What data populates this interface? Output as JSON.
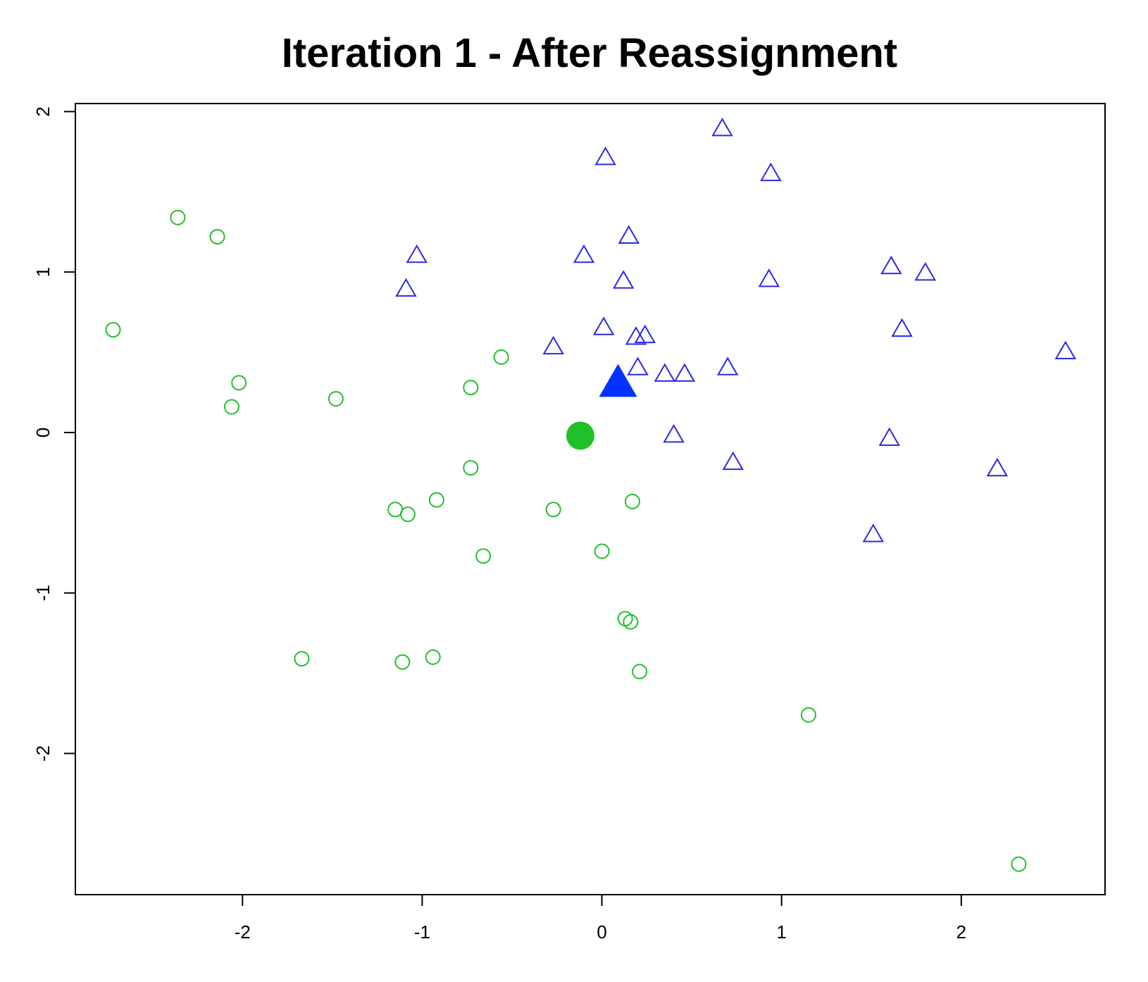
{
  "chart_data": {
    "type": "scatter",
    "title": "Iteration 1 - After Reassignment",
    "xlabel": "",
    "ylabel": "",
    "xlim": [
      -2.93,
      2.8
    ],
    "ylim": [
      -2.88,
      2.05
    ],
    "xticks": [
      -2,
      -1,
      0,
      1,
      2
    ],
    "yticks": [
      -2,
      -1,
      0,
      1,
      2
    ],
    "xtick_labels": [
      "-2",
      "-1",
      "0",
      "1",
      "2"
    ],
    "ytick_labels": [
      "-2",
      "-1",
      "0",
      "1",
      "2"
    ],
    "grid": false,
    "legend": "none",
    "series": [
      {
        "marker": "open-circle",
        "color": "#22c02b",
        "points": [
          [
            -2.36,
            1.34
          ],
          [
            -2.14,
            1.22
          ],
          [
            -2.72,
            0.64
          ],
          [
            -2.02,
            0.31
          ],
          [
            -2.06,
            0.16
          ],
          [
            -1.48,
            0.21
          ],
          [
            -0.56,
            0.47
          ],
          [
            -0.73,
            0.28
          ],
          [
            -0.73,
            -0.22
          ],
          [
            -0.92,
            -0.42
          ],
          [
            -1.15,
            -0.48
          ],
          [
            -1.08,
            -0.51
          ],
          [
            -0.27,
            -0.48
          ],
          [
            0.17,
            -0.43
          ],
          [
            -0.66,
            -0.77
          ],
          [
            0.0,
            -0.74
          ],
          [
            0.13,
            -1.16
          ],
          [
            0.16,
            -1.18
          ],
          [
            0.21,
            -1.49
          ],
          [
            -1.67,
            -1.41
          ],
          [
            -1.11,
            -1.43
          ],
          [
            -0.94,
            -1.4
          ],
          [
            1.15,
            -1.76
          ],
          [
            2.32,
            -2.69
          ]
        ]
      },
      {
        "marker": "open-triangle",
        "color": "#2a2ae0",
        "points": [
          [
            0.67,
            1.89
          ],
          [
            0.02,
            1.71
          ],
          [
            0.94,
            1.61
          ],
          [
            0.15,
            1.22
          ],
          [
            -1.03,
            1.1
          ],
          [
            -0.1,
            1.1
          ],
          [
            -1.09,
            0.89
          ],
          [
            0.12,
            0.94
          ],
          [
            1.61,
            1.03
          ],
          [
            1.8,
            0.99
          ],
          [
            0.93,
            0.95
          ],
          [
            0.01,
            0.65
          ],
          [
            0.19,
            0.59
          ],
          [
            0.24,
            0.6
          ],
          [
            1.67,
            0.64
          ],
          [
            -0.27,
            0.53
          ],
          [
            2.58,
            0.5
          ],
          [
            0.2,
            0.4
          ],
          [
            0.35,
            0.36
          ],
          [
            0.46,
            0.36
          ],
          [
            0.7,
            0.4
          ],
          [
            0.4,
            -0.02
          ],
          [
            0.73,
            -0.19
          ],
          [
            1.6,
            -0.04
          ],
          [
            2.2,
            -0.23
          ],
          [
            1.51,
            -0.64
          ]
        ]
      }
    ],
    "centroids": [
      {
        "marker": "filled-circle",
        "color": "#1fc02a",
        "point": [
          -0.12,
          -0.02
        ]
      },
      {
        "marker": "filled-triangle",
        "color": "#0033ff",
        "point": [
          0.09,
          0.3
        ]
      }
    ]
  }
}
